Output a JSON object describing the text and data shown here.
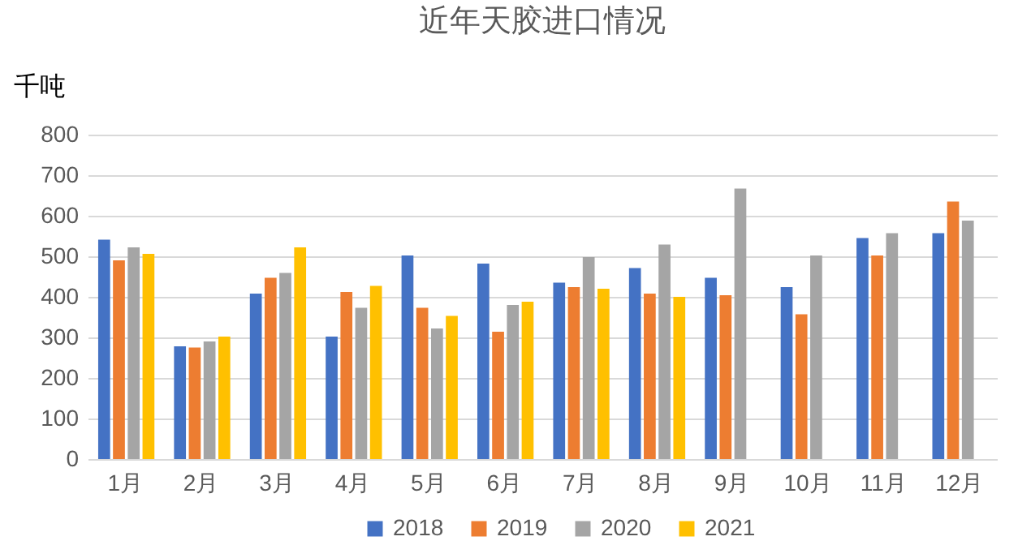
{
  "chart_data": {
    "type": "bar",
    "title": "近年天胶进口情况",
    "ylabel": "千吨",
    "categories": [
      "1月",
      "2月",
      "3月",
      "4月",
      "5月",
      "6月",
      "7月",
      "8月",
      "9月",
      "10月",
      "11月",
      "12月"
    ],
    "series": [
      {
        "name": "2018",
        "color": "#4472c4",
        "values": [
          541,
          278,
          408,
          302,
          502,
          482,
          435,
          471,
          447,
          424,
          545,
          557
        ]
      },
      {
        "name": "2019",
        "color": "#ed7d31",
        "values": [
          490,
          275,
          447,
          412,
          373,
          314,
          424,
          408,
          404,
          357,
          502,
          635
        ]
      },
      {
        "name": "2020",
        "color": "#a5a5a5",
        "values": [
          522,
          290,
          459,
          373,
          322,
          380,
          498,
          529,
          667,
          502,
          557,
          588
        ]
      },
      {
        "name": "2021",
        "color": "#ffc000",
        "values": [
          506,
          302,
          522,
          427,
          353,
          388,
          420,
          400,
          null,
          null,
          null,
          null
        ]
      }
    ],
    "ylim": [
      0,
      800
    ],
    "yticks": [
      0,
      100,
      200,
      300,
      400,
      500,
      600,
      700,
      800
    ],
    "grid": "y",
    "legend": "bottom"
  }
}
